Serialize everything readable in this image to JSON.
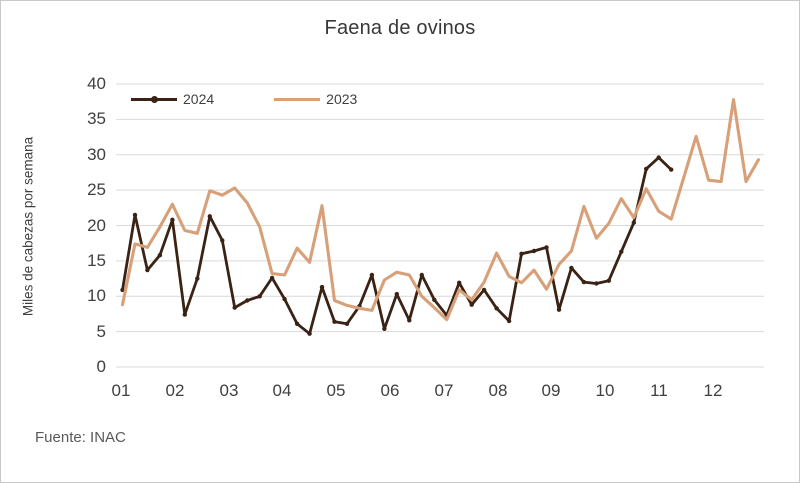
{
  "title": "Faena de ovinos",
  "source": "Fuente: INAC",
  "colors": {
    "series_2024": "#3a2314",
    "series_2023": "#d7a078",
    "gridline": "#d9d9d9",
    "text": "#404040"
  },
  "y_axis": {
    "label": "Miles de cabezas por semana",
    "ticks": [
      0,
      5,
      10,
      15,
      20,
      25,
      30,
      35,
      40
    ]
  },
  "x_axis": {
    "ticks": [
      "01",
      "02",
      "03",
      "04",
      "05",
      "06",
      "07",
      "08",
      "09",
      "10",
      "11",
      "12"
    ]
  },
  "legend": {
    "position": "top-left",
    "entries": [
      "2024",
      "2023"
    ]
  },
  "chart_data": {
    "type": "line",
    "x_unit": "week_of_year",
    "xlabel": "",
    "ylabel": "Miles de cabezas por semana",
    "ylim": [
      0,
      40
    ],
    "grid": "horizontal-only",
    "legend_position": "top-left-inside",
    "series": [
      {
        "name": "2024",
        "color": "#3a2314",
        "markers": true,
        "start_week": 1,
        "values": [
          10.9,
          21.5,
          13.7,
          15.8,
          20.8,
          7.4,
          12.5,
          21.3,
          17.9,
          8.4,
          9.4,
          10.0,
          12.6,
          9.6,
          6.1,
          4.7,
          11.3,
          6.4,
          6.1,
          8.6,
          13.0,
          5.4,
          10.3,
          6.6,
          13.0,
          9.5,
          7.3,
          11.9,
          8.8,
          10.9,
          8.3,
          6.5,
          16.0,
          16.4,
          16.9,
          8.1,
          14.0,
          12.0,
          11.8,
          12.2,
          16.3,
          20.4,
          28.0,
          29.6,
          27.9
        ]
      },
      {
        "name": "2023",
        "color": "#d7a078",
        "markers": false,
        "start_week": 1,
        "values": [
          8.8,
          17.4,
          16.9,
          19.8,
          23.0,
          19.3,
          18.9,
          24.9,
          24.3,
          25.3,
          23.2,
          19.8,
          13.2,
          13.0,
          16.8,
          14.8,
          22.8,
          9.4,
          8.7,
          8.3,
          8.0,
          12.3,
          13.4,
          13.0,
          10.0,
          8.4,
          6.7,
          10.9,
          9.5,
          12.0,
          16.1,
          12.8,
          11.9,
          13.7,
          11.0,
          14.5,
          16.4,
          22.7,
          18.2,
          20.3,
          23.8,
          21.1,
          25.2,
          22.0,
          20.9,
          26.7,
          32.6,
          26.4,
          26.2,
          37.8,
          26.2,
          29.3
        ]
      }
    ]
  }
}
